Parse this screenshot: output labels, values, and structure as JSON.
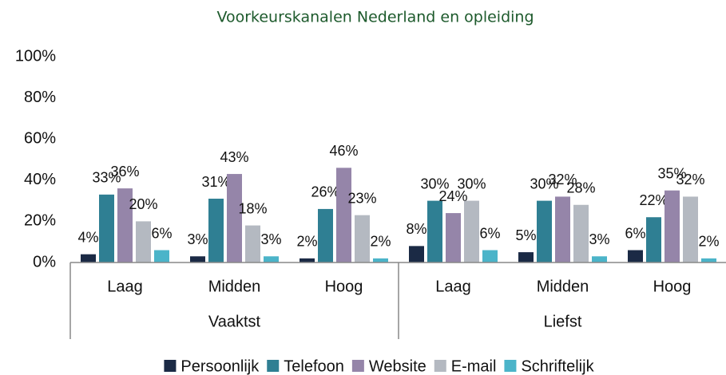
{
  "chart_data": {
    "type": "bar",
    "title": "Voorkeurskanalen Nederland en opleiding",
    "categories": [
      "Laag",
      "Midden",
      "Hoog",
      "Laag",
      "Midden",
      "Hoog"
    ],
    "group_labels": [
      "Vaaktst",
      "Liefst"
    ],
    "series": [
      {
        "name": "Persoonlijk",
        "color": "#1b2a45",
        "values": [
          4,
          3,
          2,
          8,
          5,
          6
        ],
        "value_labels": [
          "4%",
          "3%",
          "2%",
          "8%",
          "5%",
          "6%"
        ]
      },
      {
        "name": "Telefoon",
        "color": "#2f7f93",
        "values": [
          33,
          31,
          26,
          30,
          30,
          22
        ],
        "value_labels": [
          "33%",
          "31%",
          "26%",
          "30%",
          "30%",
          "22%"
        ]
      },
      {
        "name": "Website",
        "color": "#9585a9",
        "values": [
          36,
          43,
          46,
          24,
          32,
          35
        ],
        "value_labels": [
          "36%",
          "43%",
          "46%",
          "24%",
          "32%",
          "35%"
        ]
      },
      {
        "name": "E-mail",
        "color": "#b4b9c1",
        "values": [
          20,
          18,
          23,
          30,
          28,
          32
        ],
        "value_labels": [
          "20%",
          "18%",
          "23%",
          "30%",
          "28%",
          "32%"
        ]
      },
      {
        "name": "Schriftelijk",
        "color": "#4bb4c9",
        "values": [
          6,
          3,
          2,
          6,
          3,
          2
        ],
        "value_labels": [
          "6%",
          "3%",
          "2%",
          "6%",
          "3%",
          "2%"
        ]
      }
    ],
    "ylim": [
      0,
      100
    ],
    "yticks": [
      {
        "value": 0,
        "label": "0%"
      },
      {
        "value": 20,
        "label": "20%"
      },
      {
        "value": 40,
        "label": "40%"
      },
      {
        "value": 60,
        "label": "60%"
      },
      {
        "value": 80,
        "label": "80%"
      },
      {
        "value": 100,
        "label": "100%"
      }
    ],
    "grid": false,
    "legend": "bottom"
  }
}
